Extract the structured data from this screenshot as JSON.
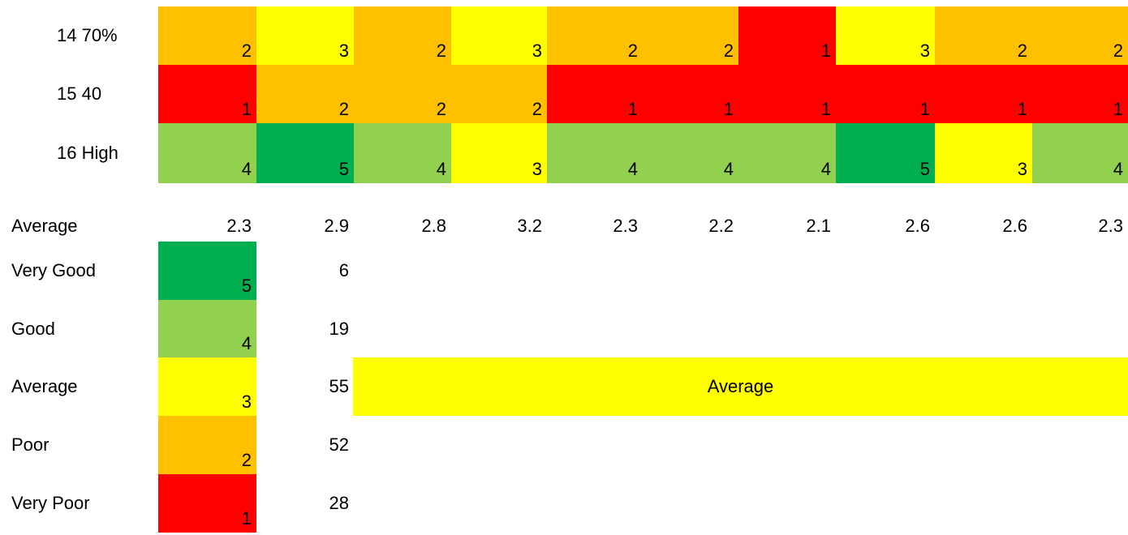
{
  "palette": {
    "1": "#ff0000",
    "2": "#ffc000",
    "3": "#ffff00",
    "4": "#92d050",
    "5": "#00b050"
  },
  "rows": [
    {
      "label": "14  70%",
      "values": [
        2,
        3,
        2,
        3,
        2,
        2,
        1,
        3,
        2,
        2
      ]
    },
    {
      "label": "15  40",
      "values": [
        1,
        2,
        2,
        2,
        1,
        1,
        1,
        1,
        1,
        1
      ]
    },
    {
      "label": "16  High",
      "values": [
        4,
        5,
        4,
        3,
        4,
        4,
        4,
        5,
        3,
        4
      ]
    }
  ],
  "average_row": {
    "label": "Average",
    "values": [
      "2.3",
      "2.9",
      "2.8",
      "3.2",
      "2.3",
      "2.2",
      "2.1",
      "2.6",
      "2.6",
      "2.3"
    ]
  },
  "legend": [
    {
      "label": "Very Good",
      "score": "5",
      "count": "6"
    },
    {
      "label": "Good",
      "score": "4",
      "count": "19"
    },
    {
      "label": "Average",
      "score": "3",
      "count": "55"
    },
    {
      "label": "Poor",
      "score": "2",
      "count": "52"
    },
    {
      "label": "Very Poor",
      "score": "1",
      "count": "28"
    }
  ],
  "overall": {
    "label": "Average",
    "color": "#ffff00"
  }
}
